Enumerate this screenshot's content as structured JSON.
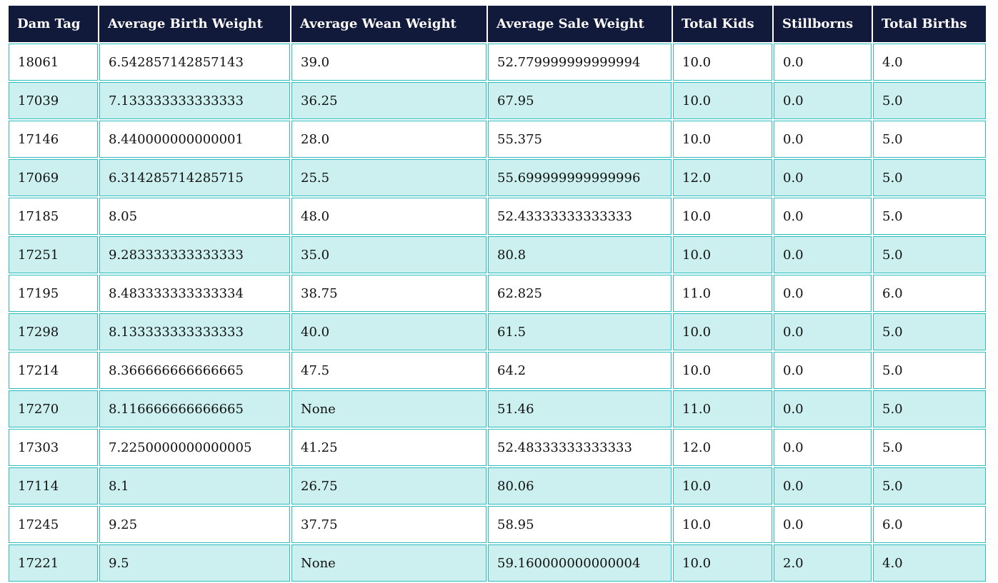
{
  "table": {
    "headers": [
      "Dam Tag",
      "Average Birth Weight",
      "Average Wean Weight",
      "Average Sale Weight",
      "Total Kids",
      "Stillborns",
      "Total Births"
    ],
    "rows": [
      [
        "18061",
        "6.542857142857143",
        "39.0",
        "52.779999999999994",
        "10.0",
        "0.0",
        "4.0"
      ],
      [
        "17039",
        "7.133333333333333",
        "36.25",
        "67.95",
        "10.0",
        "0.0",
        "5.0"
      ],
      [
        "17146",
        "8.440000000000001",
        "28.0",
        "55.375",
        "10.0",
        "0.0",
        "5.0"
      ],
      [
        "17069",
        "6.314285714285715",
        "25.5",
        "55.699999999999996",
        "12.0",
        "0.0",
        "5.0"
      ],
      [
        "17185",
        "8.05",
        "48.0",
        "52.43333333333333",
        "10.0",
        "0.0",
        "5.0"
      ],
      [
        "17251",
        "9.283333333333333",
        "35.0",
        "80.8",
        "10.0",
        "0.0",
        "5.0"
      ],
      [
        "17195",
        "8.483333333333334",
        "38.75",
        "62.825",
        "11.0",
        "0.0",
        "6.0"
      ],
      [
        "17298",
        "8.133333333333333",
        "40.0",
        "61.5",
        "10.0",
        "0.0",
        "5.0"
      ],
      [
        "17214",
        "8.366666666666665",
        "47.5",
        "64.2",
        "10.0",
        "0.0",
        "5.0"
      ],
      [
        "17270",
        "8.116666666666665",
        "None",
        "51.46",
        "11.0",
        "0.0",
        "5.0"
      ],
      [
        "17303",
        "7.2250000000000005",
        "41.25",
        "52.48333333333333",
        "12.0",
        "0.0",
        "5.0"
      ],
      [
        "17114",
        "8.1",
        "26.75",
        "80.06",
        "10.0",
        "0.0",
        "5.0"
      ],
      [
        "17245",
        "9.25",
        "37.75",
        "58.95",
        "10.0",
        "0.0",
        "6.0"
      ],
      [
        "17221",
        "9.5",
        "None",
        "59.160000000000004",
        "10.0",
        "2.0",
        "4.0"
      ]
    ]
  },
  "colors": {
    "header_bg": "#121a3c",
    "header_text": "#ffffff",
    "row_alt_bg": "#ccf0f0",
    "row_bg": "#ffffff",
    "cell_border": "#2bbdbd"
  }
}
